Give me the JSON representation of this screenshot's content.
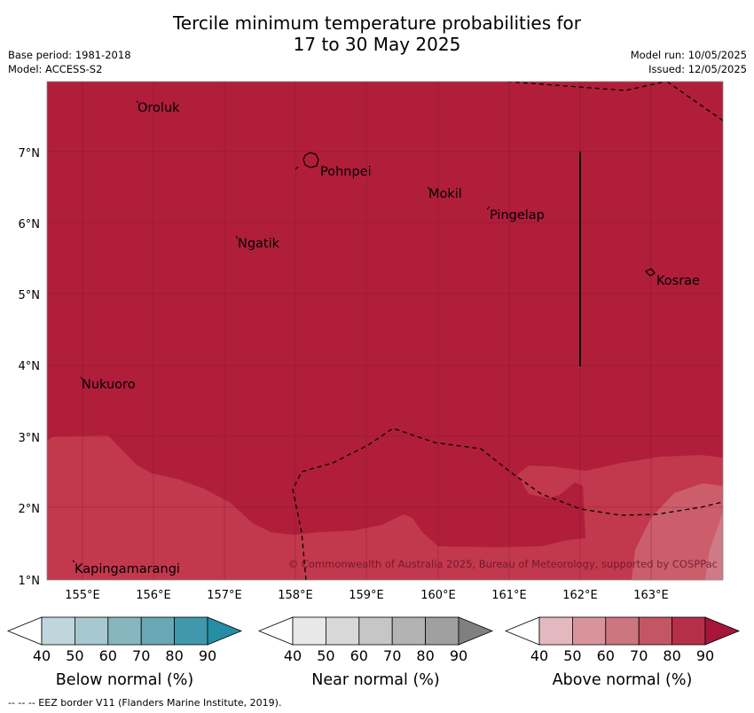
{
  "title": {
    "line1": "Tercile minimum temperature probabilities for",
    "line2": "17 to 30 May 2025"
  },
  "meta": {
    "base_period": "Base period: 1981-2018",
    "model": "Model: ACCESS-S2",
    "model_run": "Model run: 10/05/2025",
    "issued": "Issued: 12/05/2025"
  },
  "map": {
    "lon_ticks": [
      "155°E",
      "156°E",
      "157°E",
      "158°E",
      "159°E",
      "160°E",
      "161°E",
      "162°E",
      "163°E"
    ],
    "lat_ticks": [
      "1°N",
      "2°N",
      "3°N",
      "4°N",
      "5°N",
      "6°N",
      "7°N"
    ],
    "places": {
      "oroluk": "Oroluk",
      "pohnpei": "Pohnpei",
      "mokil": "Mokil",
      "pingelap": "Pingelap",
      "ngatik": "Ngatik",
      "kosrae": "Kosrae",
      "nukuoro": "Nukuoro",
      "kapingamarangi": "Kapingamarangi"
    },
    "copyright": "© Commonwealth of Australia 2025, Bureau of Meteorology, supported by COSPPac",
    "colors": {
      "above_80_90": "#b01e3a",
      "above_70_80": "#c2384d",
      "above_60_70": "#cc5e6c",
      "eez_border": "#000000"
    }
  },
  "legends": [
    {
      "label": "Below normal (%)",
      "ticks": [
        "40",
        "50",
        "60",
        "70",
        "80",
        "90"
      ],
      "colors": [
        "#ffffff",
        "#c0d6dc",
        "#a6c9cf",
        "#88b6bf",
        "#68a8b6",
        "#3f98ab",
        "#258ea4"
      ]
    },
    {
      "label": "Near normal (%)",
      "ticks": [
        "40",
        "50",
        "60",
        "70",
        "80",
        "90"
      ],
      "colors": [
        "#ffffff",
        "#e8e8e8",
        "#d8d8d8",
        "#c6c6c6",
        "#b3b3b3",
        "#a0a0a0",
        "#808080"
      ]
    },
    {
      "label": "Above normal (%)",
      "ticks": [
        "40",
        "50",
        "60",
        "70",
        "80",
        "90"
      ],
      "colors": [
        "#ffffff",
        "#e3b9bf",
        "#d8939b",
        "#ce7680",
        "#c45565",
        "#b62f49",
        "#a5163a"
      ]
    }
  ],
  "footnote": "--  --  -- EEZ border V11 (Flanders Marine Institute, 2019)."
}
